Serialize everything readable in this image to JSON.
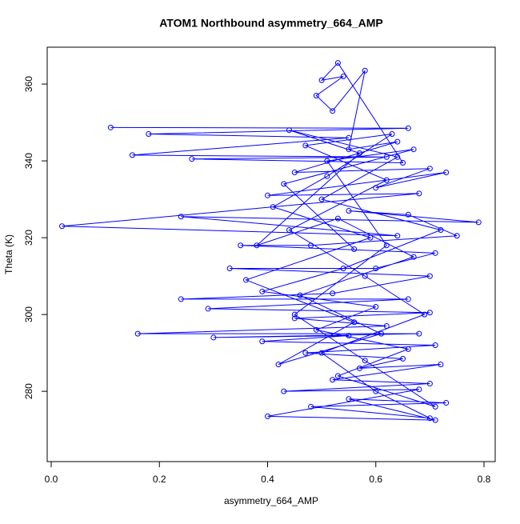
{
  "chart_data": {
    "type": "line",
    "title": "ATOM1 Northbound asymmetry_664_AMP",
    "x_label": "asymmetry_664_AMP",
    "y_label": "Theta (K)",
    "series": [
      {
        "color": "#0000ff",
        "x": [
          0.11,
          0.66,
          0.18,
          0.55,
          0.15,
          0.62,
          0.26,
          0.65,
          0.53,
          0.5,
          0.54,
          0.49,
          0.52,
          0.58,
          0.55,
          0.64,
          0.45,
          0.7,
          0.6,
          0.73,
          0.4,
          0.68,
          0.02,
          0.64,
          0.24,
          0.79,
          0.55,
          0.66,
          0.75,
          0.48,
          0.35,
          0.71,
          0.6,
          0.33,
          0.7,
          0.52,
          0.24,
          0.66,
          0.29,
          0.7,
          0.45,
          0.62,
          0.16,
          0.68,
          0.3,
          0.55,
          0.39,
          0.71,
          0.47,
          0.65,
          0.57,
          0.72,
          0.52,
          0.7,
          0.43,
          0.68,
          0.4,
          0.71,
          0.55,
          0.73,
          0.48,
          0.7,
          0.6,
          0.5,
          0.69,
          0.58,
          0.44,
          0.62,
          0.47,
          0.63,
          0.51,
          0.41,
          0.59,
          0.36,
          0.56,
          0.42,
          0.61,
          0.46,
          0.67,
          0.53,
          0.38,
          0.57,
          0.44,
          0.64,
          0.5,
          0.72,
          0.54,
          0.39,
          0.6,
          0.49,
          0.66,
          0.53,
          0.71,
          0.58,
          0.45,
          0.62,
          0.51,
          0.67,
          0.43,
          0.56
        ],
        "values": [
          348.7,
          348.5,
          347,
          346,
          341.5,
          341,
          340.5,
          339.5,
          365.5,
          361,
          362,
          357,
          353,
          363.5,
          343,
          345,
          337,
          338,
          333,
          337,
          331,
          331.5,
          323,
          320.5,
          325.5,
          324,
          327,
          326,
          320.5,
          318,
          318,
          316,
          312,
          312,
          310,
          305.5,
          304,
          304,
          301.5,
          300.5,
          299,
          297,
          295,
          295,
          294,
          294.5,
          293,
          292,
          290,
          288.5,
          286,
          287,
          283,
          282,
          280,
          280.5,
          273.5,
          272.5,
          278,
          277,
          276,
          273,
          280,
          290,
          300,
          310,
          322,
          335,
          344,
          347,
          336,
          328,
          320,
          309,
          298,
          287,
          295,
          305,
          315,
          325,
          318,
          342,
          348,
          341,
          330,
          322,
          312,
          306,
          302,
          296,
          291,
          284,
          276,
          288,
          300,
          318,
          340,
          343,
          334,
          317
        ]
      }
    ],
    "xlim": [
      -0.0074,
      0.8207
    ],
    "ylim": [
      261.7,
      369.6
    ],
    "xticks": [
      {
        "value": 0,
        "label": "0.0"
      },
      0.2,
      0.4,
      0.6,
      0.8
    ],
    "yticks": [
      280,
      300,
      320,
      340,
      360
    ]
  }
}
